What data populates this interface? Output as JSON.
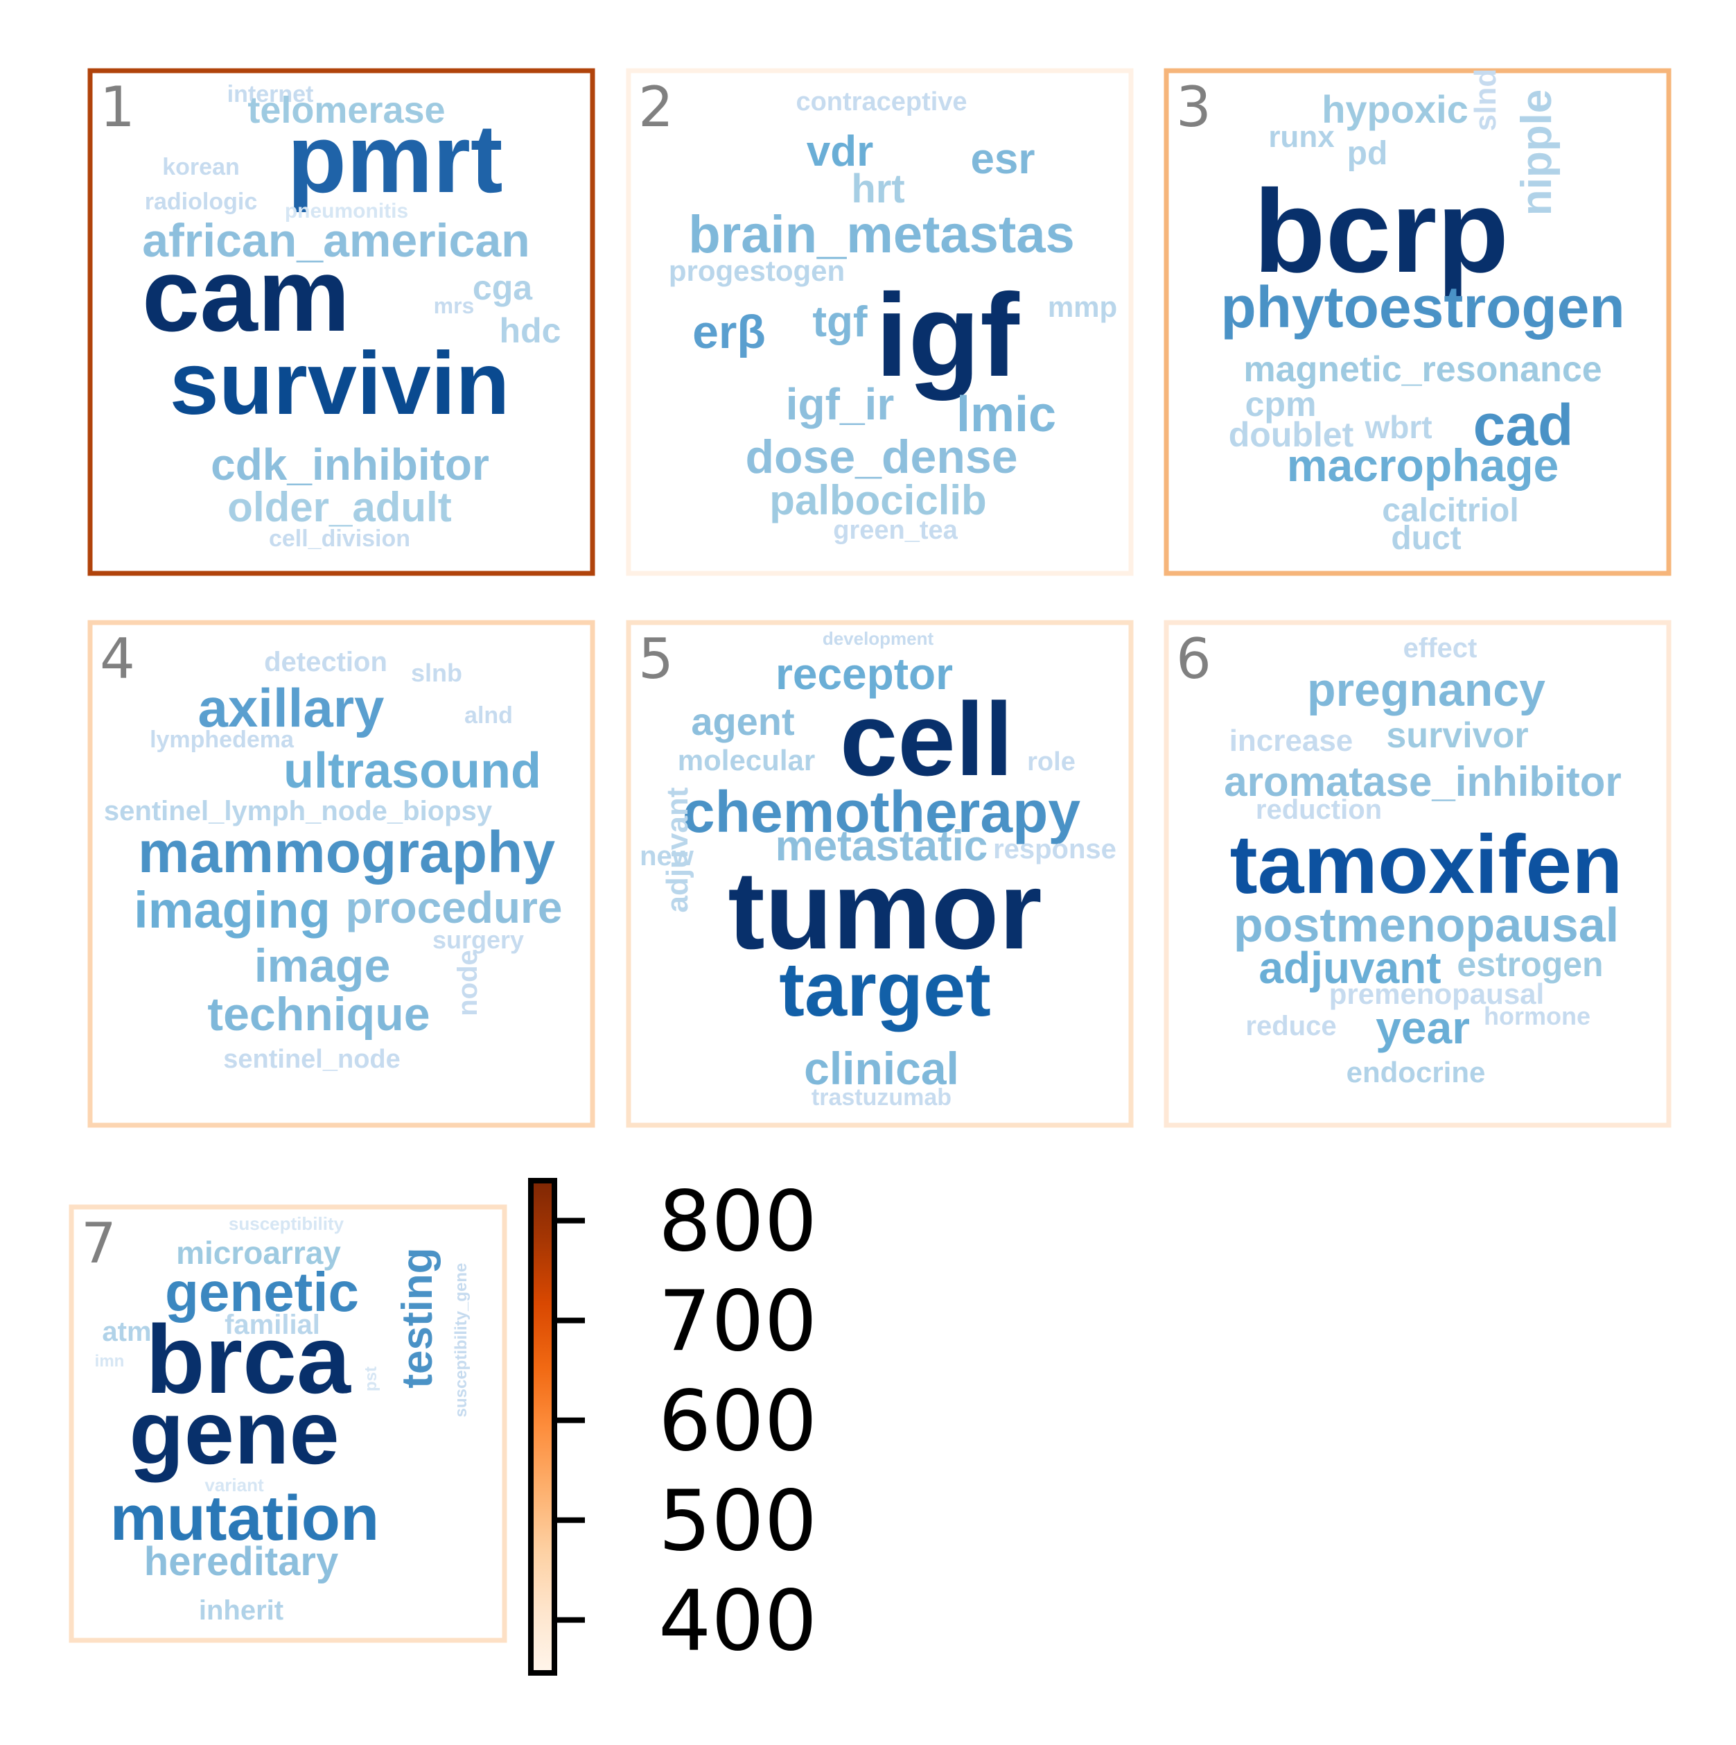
{
  "chart_data": {
    "type": "wordcloud",
    "colorbar": {
      "colormap": "Oranges",
      "range": [
        347,
        840
      ],
      "ticks": [
        400,
        500,
        600,
        700,
        800
      ],
      "tick_labels": [
        "400",
        "500",
        "600",
        "700",
        "800"
      ]
    },
    "panels": [
      {
        "label": "1",
        "value": 800,
        "frame_color": "#b0430b",
        "words": [
          {
            "text": "internet",
            "color": "#c6dbef"
          },
          {
            "text": "telomerase",
            "color": "#9ecae1"
          },
          {
            "text": "pmrt",
            "color": "#1f63a8"
          },
          {
            "text": "korean",
            "color": "#c6dbef"
          },
          {
            "text": "radiologic",
            "color": "#c6dbef"
          },
          {
            "text": "pneumonitis",
            "color": "#d6e6f4"
          },
          {
            "text": "african_american",
            "color": "#8dbfdd"
          },
          {
            "text": "cam",
            "color": "#08306b"
          },
          {
            "text": "cga",
            "color": "#b0d2e8"
          },
          {
            "text": "mrs",
            "color": "#c6dbef"
          },
          {
            "text": "hdc",
            "color": "#b0d2e8"
          },
          {
            "text": "survivin",
            "color": "#0a4a90"
          },
          {
            "text": "cdk_inhibitor",
            "color": "#8dbfdd"
          },
          {
            "text": "older_adult",
            "color": "#a6cee4"
          },
          {
            "text": "cell_division",
            "color": "#c6dbef"
          }
        ]
      },
      {
        "label": "2",
        "value": 360,
        "frame_color": "#fff1e5",
        "words": [
          {
            "text": "contraceptive",
            "color": "#c6dbef"
          },
          {
            "text": "vdr",
            "color": "#6aaed6"
          },
          {
            "text": "esr",
            "color": "#7fb8da"
          },
          {
            "text": "hrt",
            "color": "#a6cee4"
          },
          {
            "text": "brain_metastas",
            "color": "#7fb8da"
          },
          {
            "text": "progestogen",
            "color": "#b9d6eb"
          },
          {
            "text": "erβ",
            "color": "#5a9fcf"
          },
          {
            "text": "tgf",
            "color": "#7fb8da"
          },
          {
            "text": "igf",
            "color": "#08306b"
          },
          {
            "text": "mmp",
            "color": "#b9d6eb"
          },
          {
            "text": "igf_ir",
            "color": "#8dbfdd"
          },
          {
            "text": "lmic",
            "color": "#7fb8da"
          },
          {
            "text": "dose_dense",
            "color": "#8dbfdd"
          },
          {
            "text": "palbociclib",
            "color": "#9ecae1"
          },
          {
            "text": "green_tea",
            "color": "#c6dbef"
          }
        ]
      },
      {
        "label": "3",
        "value": 520,
        "frame_color": "#f6b57a",
        "words": [
          {
            "text": "hypoxic",
            "color": "#9ecae1"
          },
          {
            "text": "runx",
            "color": "#b0d2e8"
          },
          {
            "text": "pd",
            "color": "#b0d2e8"
          },
          {
            "text": "slnd",
            "color": "#c6dbef"
          },
          {
            "text": "nipple",
            "color": "#b0d2e8"
          },
          {
            "text": "bcrp",
            "color": "#08306b"
          },
          {
            "text": "phytoestrogen",
            "color": "#4a92c6"
          },
          {
            "text": "magnetic_resonance",
            "color": "#9ecae1"
          },
          {
            "text": "cpm",
            "color": "#b0d2e8"
          },
          {
            "text": "doublet",
            "color": "#b9d6eb"
          },
          {
            "text": "wbrt",
            "color": "#b9d6eb"
          },
          {
            "text": "cad",
            "color": "#4a92c6"
          },
          {
            "text": "macrophage",
            "color": "#6aaed6"
          },
          {
            "text": "calcitriol",
            "color": "#b0d2e8"
          },
          {
            "text": "duct",
            "color": "#b0d2e8"
          }
        ]
      },
      {
        "label": "4",
        "value": 440,
        "frame_color": "#fcd5b1",
        "words": [
          {
            "text": "detection",
            "color": "#c6dbef"
          },
          {
            "text": "slnb",
            "color": "#c6dbef"
          },
          {
            "text": "axillary",
            "color": "#5a9fcf"
          },
          {
            "text": "alnd",
            "color": "#c6dbef"
          },
          {
            "text": "lymphedema",
            "color": "#c6dbef"
          },
          {
            "text": "ultrasound",
            "color": "#6aaed6"
          },
          {
            "text": "sentinel_lymph_node_biopsy",
            "color": "#b9d6eb"
          },
          {
            "text": "mammography",
            "color": "#4a92c6"
          },
          {
            "text": "imaging",
            "color": "#6aaed6"
          },
          {
            "text": "procedure",
            "color": "#8dbfdd"
          },
          {
            "text": "surgery",
            "color": "#c6dbef"
          },
          {
            "text": "image",
            "color": "#7fb8da"
          },
          {
            "text": "technique",
            "color": "#7fb8da"
          },
          {
            "text": "node",
            "color": "#c6dbef"
          },
          {
            "text": "sentinel_node",
            "color": "#c6dbef"
          }
        ]
      },
      {
        "label": "5",
        "value": 420,
        "frame_color": "#fde2c8",
        "words": [
          {
            "text": "development",
            "color": "#c6dbef"
          },
          {
            "text": "receptor",
            "color": "#6aaed6"
          },
          {
            "text": "agent",
            "color": "#8dbfdd"
          },
          {
            "text": "cell",
            "color": "#08306b"
          },
          {
            "text": "molecular",
            "color": "#b0d2e8"
          },
          {
            "text": "role",
            "color": "#c6dbef"
          },
          {
            "text": "chemotherapy",
            "color": "#4a92c6"
          },
          {
            "text": "new",
            "color": "#b9d6eb"
          },
          {
            "text": "metastatic",
            "color": "#8dbfdd"
          },
          {
            "text": "response",
            "color": "#c6dbef"
          },
          {
            "text": "adjuvant",
            "color": "#b9d6eb"
          },
          {
            "text": "tumor",
            "color": "#08306b"
          },
          {
            "text": "target",
            "color": "#1260a8"
          },
          {
            "text": "clinical",
            "color": "#7fb8da"
          },
          {
            "text": "trastuzumab",
            "color": "#c6dbef"
          }
        ]
      },
      {
        "label": "6",
        "value": 390,
        "frame_color": "#fee8d6",
        "words": [
          {
            "text": "effect",
            "color": "#c6dbef"
          },
          {
            "text": "pregnancy",
            "color": "#7fb8da"
          },
          {
            "text": "increase",
            "color": "#c6dbef"
          },
          {
            "text": "survivor",
            "color": "#9ecae1"
          },
          {
            "text": "aromatase_inhibitor",
            "color": "#8dbfdd"
          },
          {
            "text": "reduction",
            "color": "#c6dbef"
          },
          {
            "text": "tamoxifen",
            "color": "#0d52a0"
          },
          {
            "text": "postmenopausal",
            "color": "#7fb8da"
          },
          {
            "text": "adjuvant",
            "color": "#6aaed6"
          },
          {
            "text": "estrogen",
            "color": "#9ecae1"
          },
          {
            "text": "premenopausal",
            "color": "#c6dbef"
          },
          {
            "text": "reduce",
            "color": "#c6dbef"
          },
          {
            "text": "year",
            "color": "#6aaed6"
          },
          {
            "text": "hormone",
            "color": "#c6dbef"
          },
          {
            "text": "endocrine",
            "color": "#b0d2e8"
          }
        ]
      },
      {
        "label": "7",
        "value": 410,
        "frame_color": "#fde0c5",
        "words": [
          {
            "text": "susceptibility",
            "color": "#d6e6f4"
          },
          {
            "text": "microarray",
            "color": "#9ecae1"
          },
          {
            "text": "genetic",
            "color": "#3b87c0"
          },
          {
            "text": "familial",
            "color": "#b9d6eb"
          },
          {
            "text": "atm",
            "color": "#b0d2e8"
          },
          {
            "text": "imn",
            "color": "#d6e6f4"
          },
          {
            "text": "brca",
            "color": "#08306b"
          },
          {
            "text": "testing",
            "color": "#4a92c6"
          },
          {
            "text": "susceptibility_gene",
            "color": "#c6dbef"
          },
          {
            "text": "pst",
            "color": "#d6e6f4"
          },
          {
            "text": "gene",
            "color": "#08306b"
          },
          {
            "text": "variant",
            "color": "#d6e6f4"
          },
          {
            "text": "mutation",
            "color": "#2a78b7"
          },
          {
            "text": "hereditary",
            "color": "#8dbfdd"
          },
          {
            "text": "inherit",
            "color": "#b0d2e8"
          }
        ]
      }
    ]
  }
}
